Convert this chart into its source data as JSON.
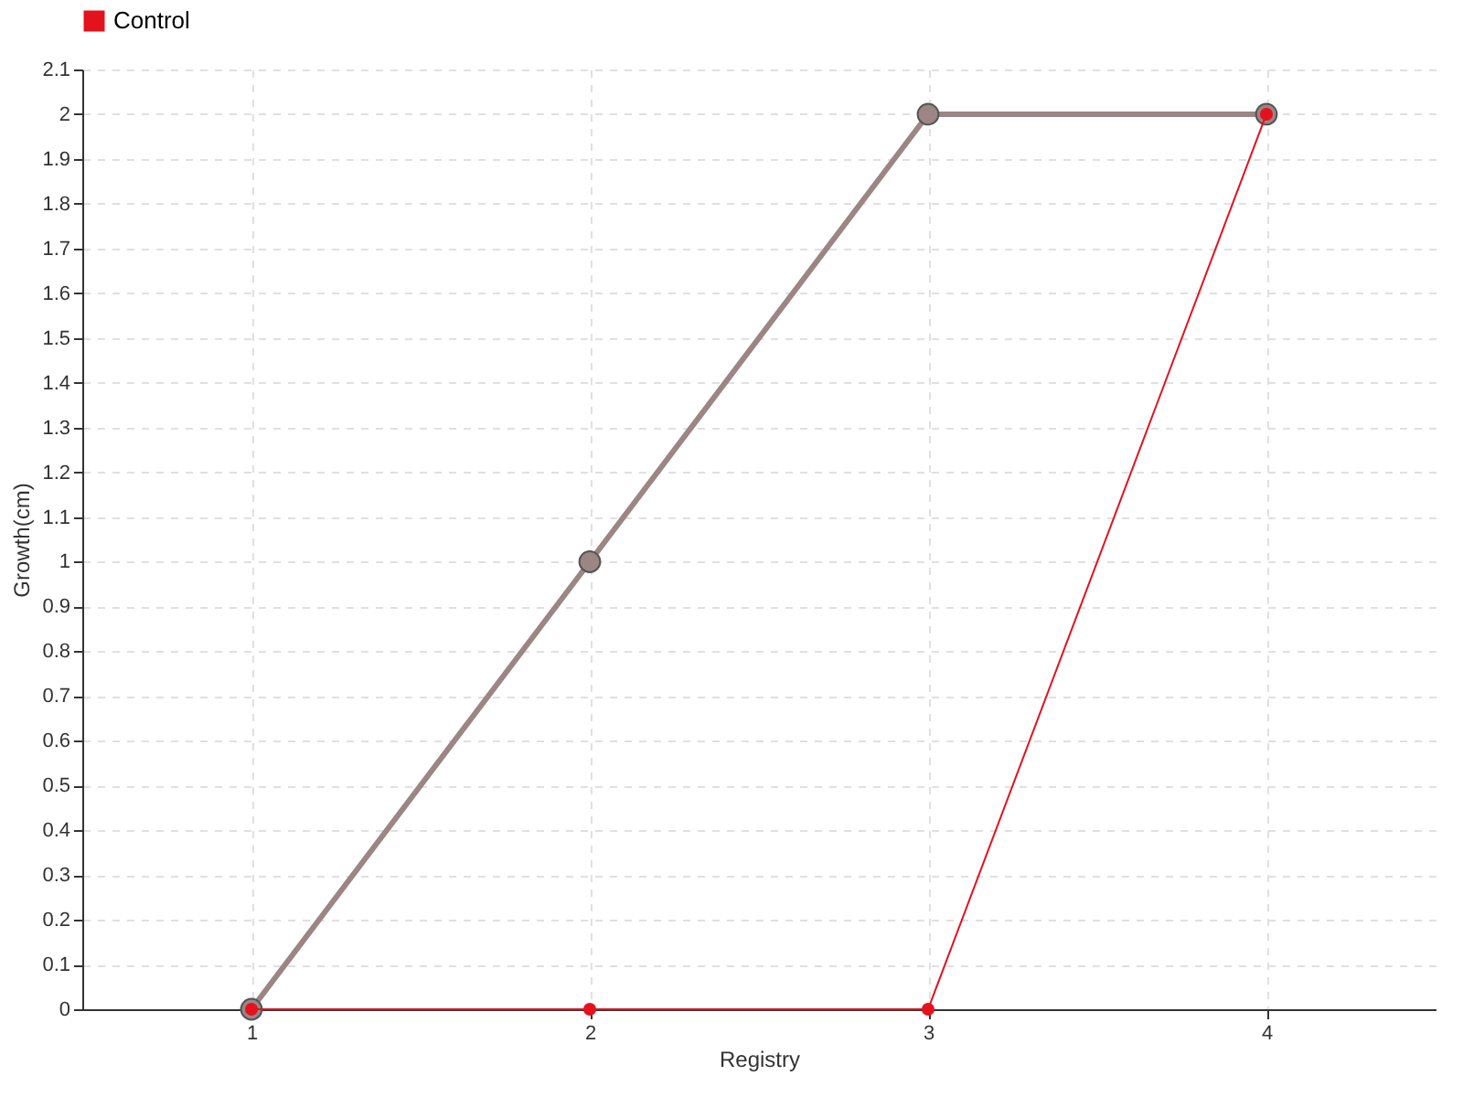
{
  "chart_data": {
    "type": "line",
    "xlabel": "Registry",
    "ylabel": "Growth(cm)",
    "x": [
      1,
      2,
      3,
      4
    ],
    "xlim": [
      0.5,
      4.5
    ],
    "xticks": [
      1,
      2,
      3,
      4
    ],
    "ylim": [
      0,
      2.1
    ],
    "yticks": [
      0,
      0.1,
      0.2,
      0.3,
      0.4,
      0.5,
      0.6,
      0.7,
      0.8,
      0.9,
      1,
      1.1,
      1.2,
      1.3,
      1.4,
      1.5,
      1.6,
      1.7,
      1.8,
      1.9,
      2,
      2.1
    ],
    "series": [
      {
        "color": "#9c8585",
        "values": [
          0,
          1,
          2,
          2
        ]
      },
      {
        "name": "Control",
        "color": "#e3121d",
        "values": [
          0,
          0,
          0,
          2
        ]
      }
    ],
    "grid": true,
    "legend": "top left",
    "marker": "circle",
    "line_style": "solid"
  }
}
